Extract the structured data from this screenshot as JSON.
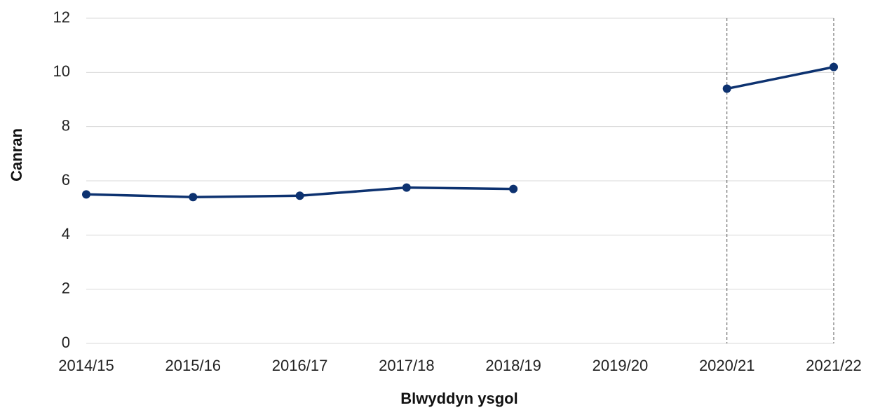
{
  "chart_data": {
    "type": "line",
    "x_label": "Blwyddyn ysgol",
    "y_label": "Canran",
    "categories": [
      "2014/15",
      "2015/16",
      "2016/17",
      "2017/18",
      "2018/19",
      "2019/20",
      "2020/21",
      "2021/22"
    ],
    "series": [
      {
        "name": "Canran",
        "color": "#0d3270",
        "values": [
          5.5,
          5.4,
          5.45,
          5.75,
          5.7,
          null,
          9.4,
          10.2
        ]
      }
    ],
    "ylim": [
      0,
      12
    ],
    "yticks": [
      0,
      2,
      4,
      6,
      8,
      10,
      12
    ],
    "grid": true
  }
}
